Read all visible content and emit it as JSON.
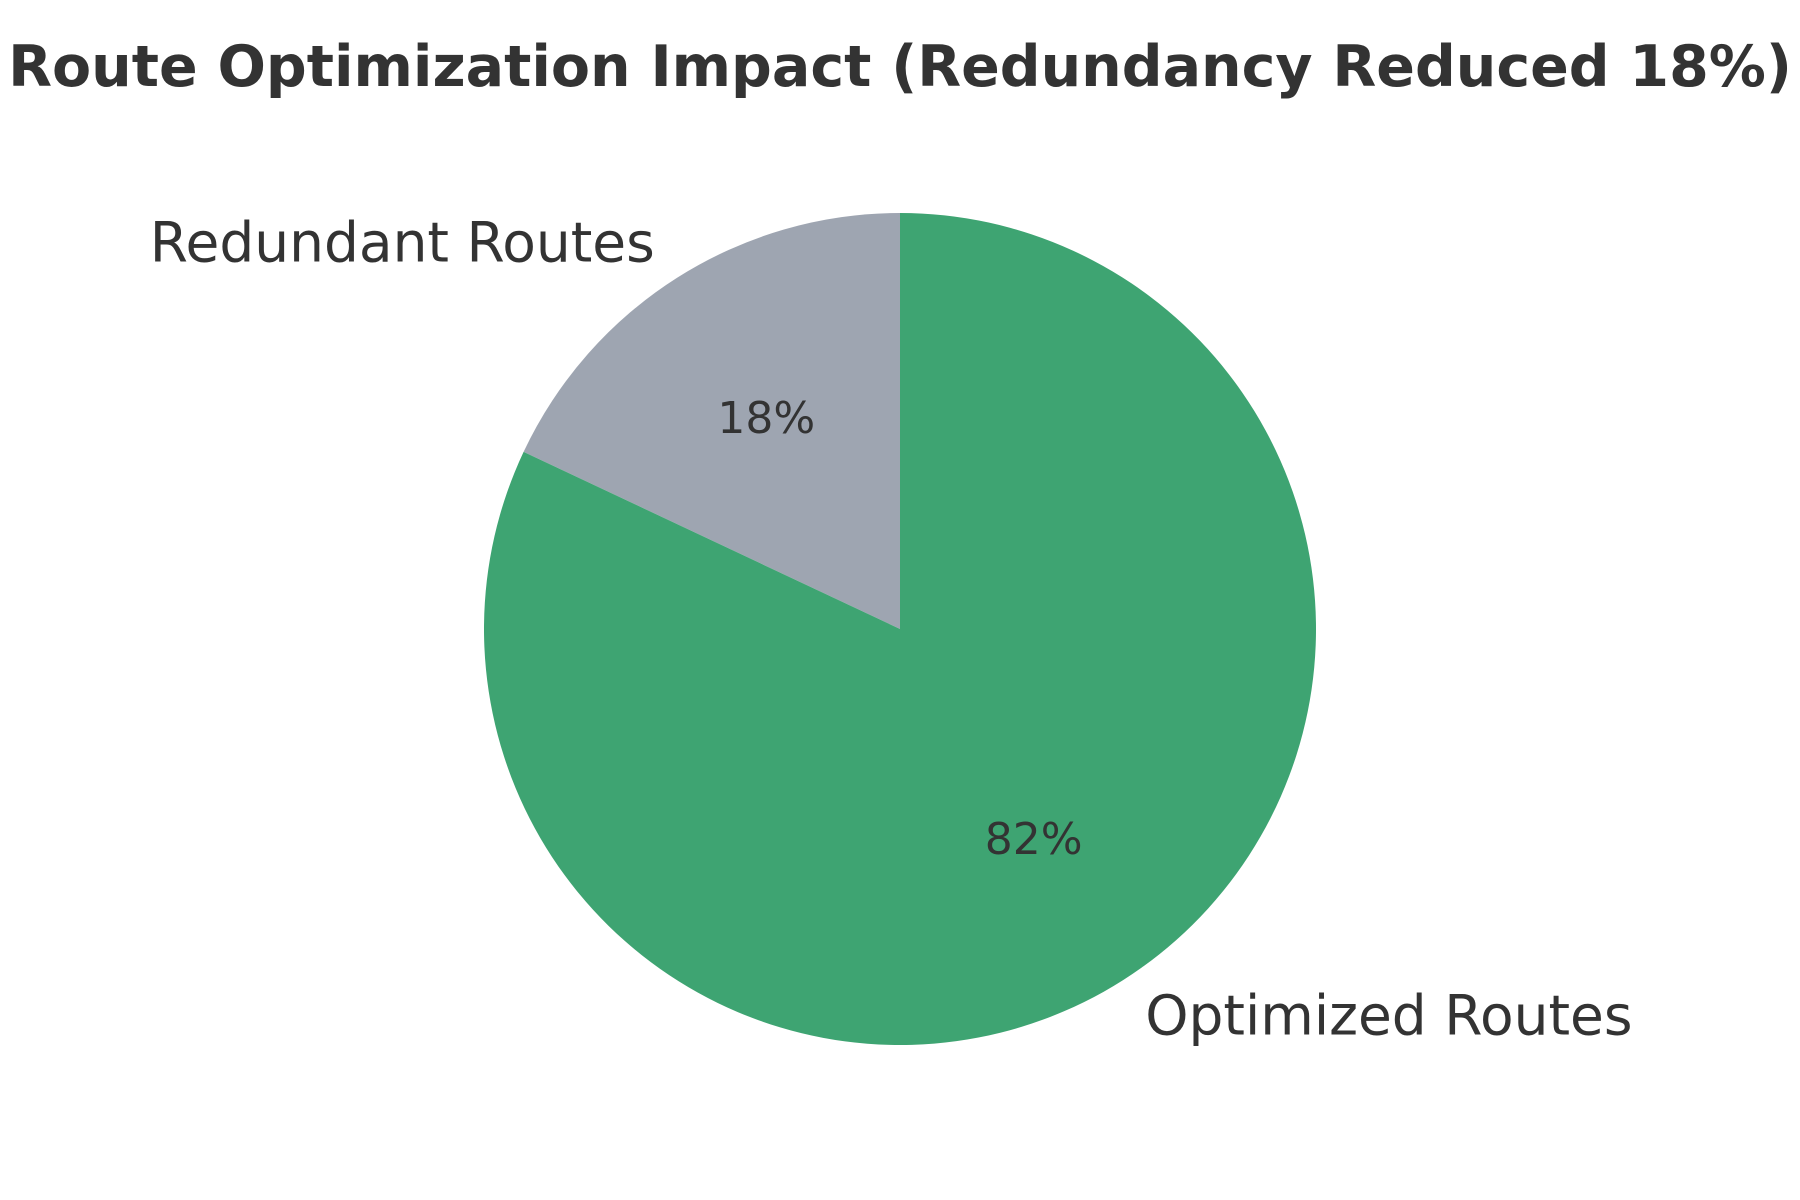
{
  "chart_data": {
    "type": "pie",
    "title": "Route Optimization Impact (Redundancy Reduced 18%)",
    "slices": [
      {
        "label": "Redundant Routes",
        "value": 18,
        "pct_label": "18%",
        "color": "#9EA5B1"
      },
      {
        "label": "Optimized Routes",
        "value": 82,
        "pct_label": "82%",
        "color": "#3EA472"
      }
    ],
    "start_angle_deg": 90,
    "direction": "counterclockwise",
    "label_distance": 1.1,
    "pct_distance": 0.6,
    "text_color": "#333333",
    "legend": "none",
    "grid": "off"
  }
}
